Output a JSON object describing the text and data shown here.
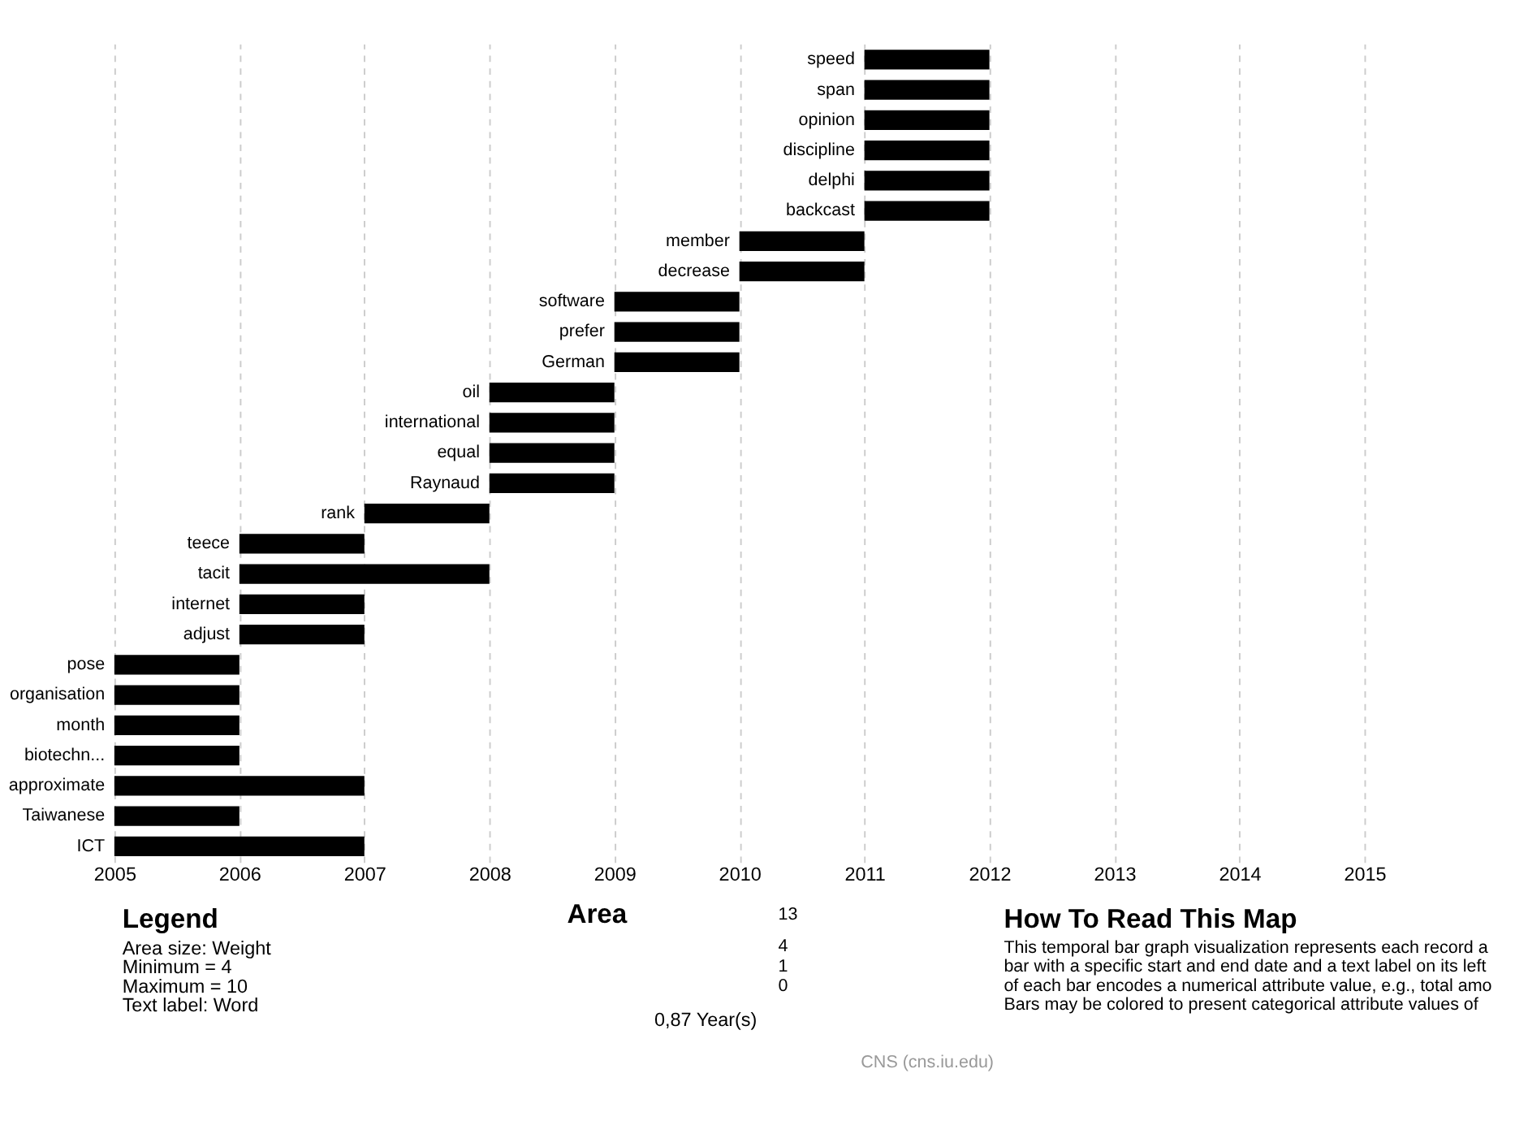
{
  "chart_data": {
    "type": "bar",
    "orientation": "horizontal",
    "categories": [
      "speed",
      "span",
      "opinion",
      "discipline",
      "delphi",
      "backcast",
      "member",
      "decrease",
      "software",
      "prefer",
      "German",
      "oil",
      "international",
      "equal",
      "Raynaud",
      "rank",
      "teece",
      "tacit",
      "internet",
      "adjust",
      "pose",
      "organisation",
      "month",
      "biotechn...",
      "approximate",
      "Taiwanese",
      "ICT"
    ],
    "base": [
      2011,
      2011,
      2011,
      2011,
      2011,
      2011,
      2010,
      2010,
      2009,
      2009,
      2009,
      2008,
      2008,
      2008,
      2008,
      2007,
      2006,
      2006,
      2006,
      2006,
      2005,
      2005,
      2005,
      2005,
      2005,
      2005,
      2005
    ],
    "values": [
      1,
      1,
      1,
      1,
      1,
      1,
      1,
      1,
      1,
      1,
      1,
      1,
      1,
      1,
      1,
      1,
      1,
      2,
      1,
      1,
      1,
      1,
      1,
      1,
      2,
      1,
      2
    ],
    "color": "#000000",
    "xlim": [
      2005,
      2015
    ],
    "xticks": [
      2005,
      2006,
      2007,
      2008,
      2009,
      2010,
      2011,
      2012,
      2013,
      2014,
      2015
    ],
    "grid": "x",
    "tick_labels": "x",
    "annotations": [
      "Legend",
      "Area size: Weight",
      "Minimum = 4",
      "Maximum = 10",
      "Text label: Word",
      "Area",
      "13",
      "4",
      "1",
      "0",
      "0,87 Year(s)",
      "How To Read This Map",
      "This temporal bar graph visualization represents each record a",
      "bar with a specific start and end date and a text label on its left",
      "of each bar encodes a numerical attribute value, e.g., total amo",
      "Bars may be colored to present categorical attribute values of",
      "CNS (cns.iu.edu)"
    ]
  }
}
